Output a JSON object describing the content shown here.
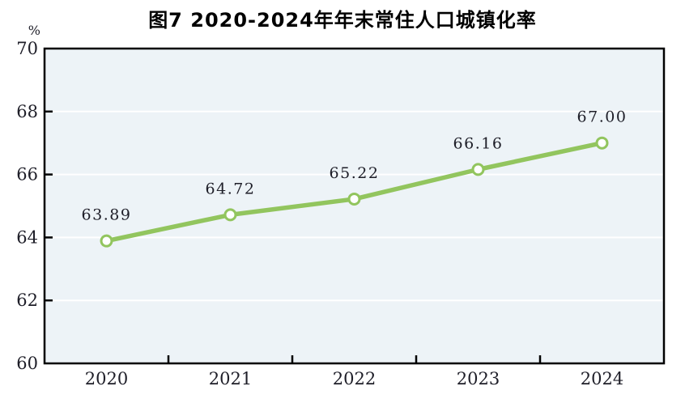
{
  "page": {
    "background": "#ffffff"
  },
  "chart_data": {
    "type": "line",
    "title": "图7  2020-2024年年末常住人口城镇化率",
    "unit_label": "%",
    "categories": [
      "2020",
      "2021",
      "2022",
      "2023",
      "2024"
    ],
    "series": [
      {
        "name": "年末常住人口城镇化率",
        "values": [
          63.89,
          64.72,
          65.22,
          66.16,
          67.0
        ],
        "data_labels": [
          "63.89",
          "64.72",
          "65.22",
          "66.16",
          "67.00"
        ]
      }
    ],
    "xlabel": "",
    "ylabel": "%",
    "ylim": [
      60,
      70
    ],
    "yticks": [
      60,
      62,
      64,
      66,
      68,
      70
    ],
    "gridlines_at": [
      62,
      64,
      66,
      68
    ],
    "grid": true,
    "legend_position": "none",
    "colors": {
      "line": "#92c55e",
      "marker_fill": "#ffffff",
      "marker_stroke": "#92c55e",
      "plot_background": "#edf3f7",
      "gridline": "#ffffff",
      "axis_frame": "#000000",
      "label_text": "#1e1e28",
      "title_text": "#000000"
    }
  }
}
